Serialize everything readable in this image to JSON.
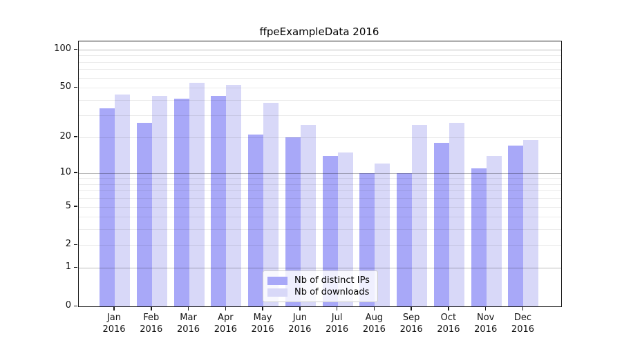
{
  "title": "ffpeExampleData 2016",
  "chart_data": {
    "type": "bar",
    "title": "ffpeExampleData 2016",
    "categories": [
      "Jan 2016",
      "Feb 2016",
      "Mar 2016",
      "Apr 2016",
      "May 2016",
      "Jun 2016",
      "Jul 2016",
      "Aug 2016",
      "Sep 2016",
      "Oct 2016",
      "Nov 2016",
      "Dec 2016"
    ],
    "series": [
      {
        "name": "Nb of distinct IPs",
        "color": "#a8a8f8",
        "values": [
          34,
          26,
          41,
          43,
          21,
          20,
          14,
          10,
          10,
          18,
          11,
          17
        ]
      },
      {
        "name": "Nb of downloads",
        "color": "#d8d8f8",
        "values": [
          44,
          43,
          55,
          53,
          38,
          25,
          15,
          12,
          25,
          26,
          14,
          19
        ]
      }
    ],
    "xlabel": "",
    "ylabel": "",
    "yscale": "log10(value+1)",
    "ylim": [
      0,
      116
    ],
    "yticks": [
      100,
      50,
      20,
      10,
      5,
      2,
      1,
      0
    ],
    "minor_gridlines": [
      2,
      3,
      4,
      5,
      6,
      7,
      8,
      9,
      20,
      30,
      40,
      50,
      60,
      70,
      80,
      90
    ],
    "major_gridlines": [
      1,
      10,
      100
    ],
    "grid": true,
    "legend_position": "inside-bottom-center"
  }
}
